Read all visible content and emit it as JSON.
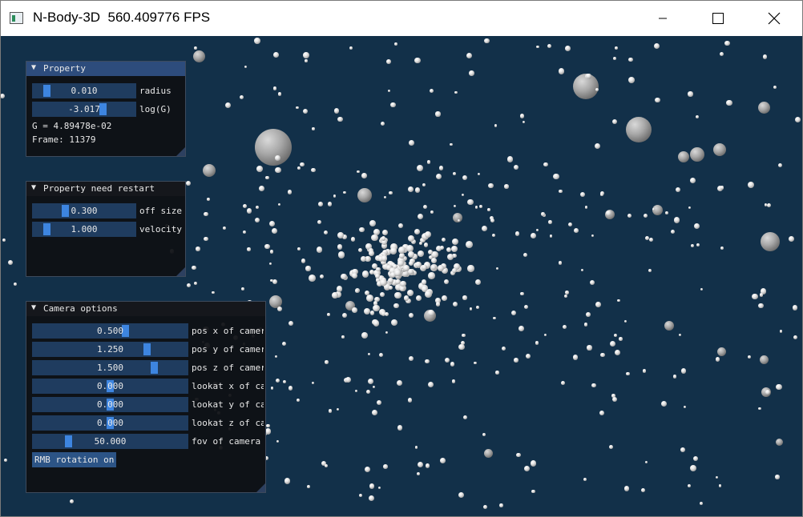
{
  "window": {
    "title": "N-Body-3D  560.409776 FPS"
  },
  "colors": {
    "scene_bg": "#123049",
    "slider_bg": "#1f3c5f",
    "grab": "#3d85e0",
    "active_header": "#2d4c7c"
  },
  "icons": {
    "minimize": "minimize-icon",
    "maximize": "maximize-icon",
    "close": "close-icon",
    "collapse": "triangle-down-icon"
  },
  "property": {
    "title": "Property",
    "radius": {
      "value": "0.010",
      "label": "radius"
    },
    "logg": {
      "value": "-3.017",
      "label": "log(G)"
    },
    "g_text": "G = 4.89478e-02",
    "frame_text": "Frame: 11379"
  },
  "restart": {
    "title": "Property need restart",
    "offsize": {
      "value": "0.300",
      "label": "off size"
    },
    "velocity": {
      "value": "1.000",
      "label": "velocity"
    }
  },
  "camera": {
    "title": "Camera options",
    "posx": {
      "value": "0.500",
      "label": "pos x of camera"
    },
    "posy": {
      "value": "1.250",
      "label": "pos y of camera"
    },
    "posz": {
      "value": "1.500",
      "label": "pos z of camera"
    },
    "lookx": {
      "value": "0.000",
      "label": "lookat x of camera"
    },
    "looky": {
      "value": "0.000",
      "label": "lookat y of camera"
    },
    "lookz": {
      "value": "0.000",
      "label": "lookat z of camera"
    },
    "fov": {
      "value": "50.000",
      "label": "fov of camera"
    },
    "rmb_button": "RMB rotation on"
  }
}
